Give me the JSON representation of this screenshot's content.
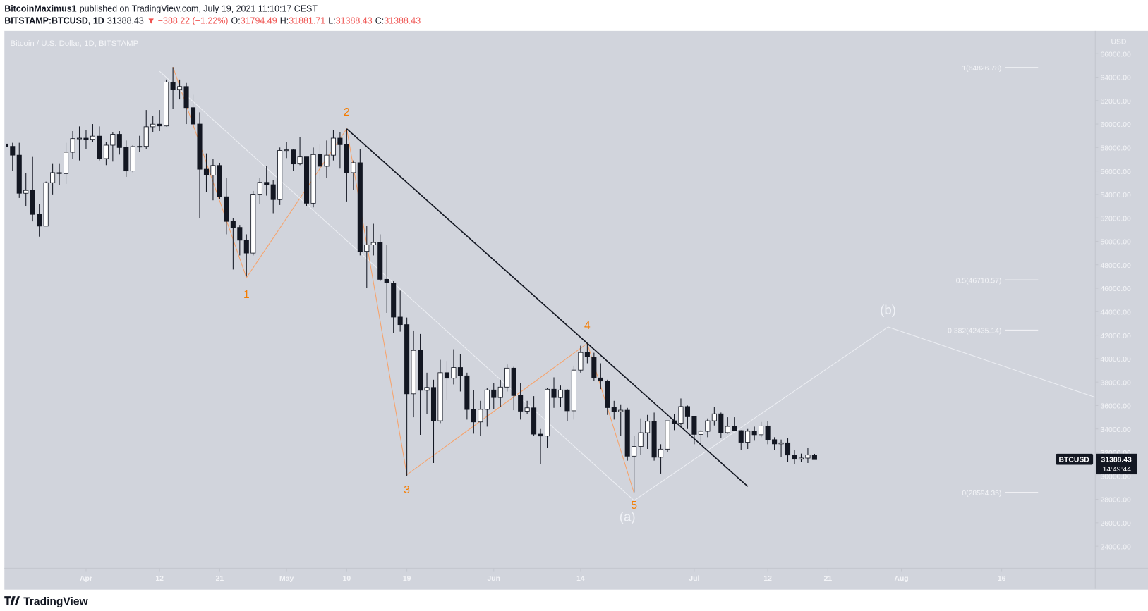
{
  "header": {
    "author": "BitcoinMaximus1",
    "published": "published on TradingView.com, July 19, 2021 11:10:17 CEST",
    "symbol": "BITSTAMP:BTCUSD, 1D",
    "last": "31388.43",
    "change": "▼ −388.22 (−1.22%)",
    "ohlc": [
      {
        "key": "O:",
        "value": "31794.49"
      },
      {
        "key": "H:",
        "value": "31881.71"
      },
      {
        "key": "L:",
        "value": "31388.43"
      },
      {
        "key": "C:",
        "value": "31388.43"
      }
    ]
  },
  "chart_data": {
    "type": "candlestick",
    "legend": "Bitcoin / U.S. Dollar, 1D, BITSTAMP",
    "currency": "USD",
    "symbol_tag": "BTCUSD",
    "last_label": "31388.43",
    "countdown": "14:49:44",
    "up_color": "#ffffff",
    "down_color": "#131722",
    "x": [
      "2021-03-20",
      "2021-03-21",
      "2021-03-22",
      "2021-03-23",
      "2021-03-24",
      "2021-03-25",
      "2021-03-26",
      "2021-03-27",
      "2021-03-28",
      "2021-03-29",
      "2021-03-30",
      "2021-03-31",
      "2021-04-01",
      "2021-04-02",
      "2021-04-03",
      "2021-04-04",
      "2021-04-05",
      "2021-04-06",
      "2021-04-07",
      "2021-04-08",
      "2021-04-09",
      "2021-04-10",
      "2021-04-11",
      "2021-04-12",
      "2021-04-13",
      "2021-04-14",
      "2021-04-15",
      "2021-04-16",
      "2021-04-17",
      "2021-04-18",
      "2021-04-19",
      "2021-04-20",
      "2021-04-21",
      "2021-04-22",
      "2021-04-23",
      "2021-04-24",
      "2021-04-25",
      "2021-04-26",
      "2021-04-27",
      "2021-04-28",
      "2021-04-29",
      "2021-04-30",
      "2021-05-01",
      "2021-05-02",
      "2021-05-03",
      "2021-05-04",
      "2021-05-05",
      "2021-05-06",
      "2021-05-07",
      "2021-05-08",
      "2021-05-09",
      "2021-05-10",
      "2021-05-11",
      "2021-05-12",
      "2021-05-13",
      "2021-05-14",
      "2021-05-15",
      "2021-05-16",
      "2021-05-17",
      "2021-05-18",
      "2021-05-19",
      "2021-05-20",
      "2021-05-21",
      "2021-05-22",
      "2021-05-23",
      "2021-05-24",
      "2021-05-25",
      "2021-05-26",
      "2021-05-27",
      "2021-05-28",
      "2021-05-29",
      "2021-05-30",
      "2021-05-31",
      "2021-06-01",
      "2021-06-02",
      "2021-06-03",
      "2021-06-04",
      "2021-06-05",
      "2021-06-06",
      "2021-06-07",
      "2021-06-08",
      "2021-06-09",
      "2021-06-10",
      "2021-06-11",
      "2021-06-12",
      "2021-06-13",
      "2021-06-14",
      "2021-06-15",
      "2021-06-16",
      "2021-06-17",
      "2021-06-18",
      "2021-06-19",
      "2021-06-20",
      "2021-06-21",
      "2021-06-22",
      "2021-06-23",
      "2021-06-24",
      "2021-06-25",
      "2021-06-26",
      "2021-06-27",
      "2021-06-28",
      "2021-06-29",
      "2021-06-30",
      "2021-07-01",
      "2021-07-02",
      "2021-07-03",
      "2021-07-04",
      "2021-07-05",
      "2021-07-06",
      "2021-07-07",
      "2021-07-08",
      "2021-07-09",
      "2021-07-10",
      "2021-07-11",
      "2021-07-12",
      "2021-07-13",
      "2021-07-14",
      "2021-07-15",
      "2021-07-16",
      "2021-07-17",
      "2021-07-18",
      "2021-07-19"
    ],
    "open": [
      58300,
      58100,
      57350,
      54100,
      54340,
      52300,
      51300,
      55000,
      55860,
      55780,
      57600,
      58760,
      58800,
      58700,
      58970,
      57060,
      58200,
      59130,
      58000,
      56000,
      58080,
      58100,
      59770,
      59990,
      59840,
      63580,
      62960,
      63200,
      61400,
      60000,
      56150,
      55650,
      56470,
      53800,
      51700,
      51190,
      50100,
      49000,
      54020,
      55030,
      54830,
      53560,
      57750,
      57800,
      56600,
      57200,
      53250,
      57400,
      56400,
      57350,
      58800,
      58240,
      55860,
      56700,
      49150,
      49700,
      49900,
      46760,
      46450,
      43540,
      42900,
      37000,
      40700,
      37300,
      37540,
      34700,
      38800,
      38330,
      39240,
      38530,
      35660,
      34600,
      35670,
      37330,
      36680,
      37570,
      39190,
      36850,
      35520,
      35800,
      33560,
      33400,
      37390,
      36680,
      37330,
      35550,
      39020,
      40520,
      40140,
      38350,
      38090,
      35820,
      35480,
      35600,
      31680,
      32510,
      33680,
      34660,
      31590,
      32280,
      34700,
      34490,
      35910,
      35040,
      33540,
      33800,
      34700,
      35290,
      33690,
      34220,
      33860,
      32870,
      33810,
      33510,
      34260,
      33090,
      32730,
      32820,
      31780,
      31420,
      31520,
      31794.49
    ],
    "high": [
      59900,
      58400,
      58400,
      55800,
      57200,
      53200,
      55100,
      56600,
      56600,
      58400,
      59400,
      59800,
      59500,
      60000,
      59800,
      58500,
      59300,
      59400,
      58600,
      58200,
      59000,
      61200,
      60700,
      61200,
      63800,
      64850,
      63800,
      63500,
      62500,
      61000,
      57500,
      57000,
      56700,
      55400,
      52000,
      51400,
      50600,
      54300,
      55400,
      56400,
      55200,
      58000,
      58500,
      57900,
      58900,
      57200,
      58000,
      58300,
      58600,
      59500,
      59300,
      59600,
      56900,
      57900,
      51300,
      51500,
      50600,
      49700,
      46600,
      45800,
      43500,
      42400,
      42100,
      38800,
      38200,
      39900,
      39800,
      40800,
      40400,
      38800,
      37300,
      36400,
      37500,
      37900,
      38200,
      39500,
      39300,
      37900,
      36400,
      36800,
      34000,
      37500,
      38400,
      37700,
      37400,
      39400,
      41100,
      41300,
      40500,
      39600,
      38200,
      36400,
      36100,
      35800,
      33400,
      34900,
      35200,
      35400,
      32700,
      34700,
      35300,
      36600,
      36000,
      35100,
      33900,
      34900,
      35900,
      35400,
      35000,
      35000,
      33900,
      34000,
      34200,
      34600,
      34700,
      33300,
      33100,
      33200,
      32200,
      31900,
      32400,
      31881.71
    ],
    "low": [
      57900,
      56000,
      53700,
      53000,
      51700,
      50400,
      51300,
      54000,
      54800,
      54900,
      57000,
      56900,
      57900,
      58500,
      56900,
      56500,
      56800,
      57400,
      55500,
      55900,
      57600,
      57900,
      59300,
      59400,
      59800,
      61300,
      62100,
      60000,
      59600,
      52000,
      54200,
      53500,
      53600,
      50600,
      47600,
      48800,
      47000,
      48800,
      53200,
      53900,
      52400,
      53100,
      57100,
      56000,
      56500,
      53000,
      52900,
      55300,
      55400,
      56900,
      56200,
      53400,
      54400,
      48800,
      46000,
      48800,
      46600,
      43900,
      42200,
      42300,
      30000,
      35000,
      33500,
      35300,
      31100,
      34500,
      36500,
      37800,
      37200,
      34800,
      33600,
      33400,
      34200,
      35700,
      35900,
      37200,
      35600,
      34800,
      35300,
      33400,
      31000,
      32400,
      35800,
      35900,
      34700,
      34800,
      38800,
      39600,
      38100,
      37400,
      35200,
      34800,
      33400,
      31300,
      28600,
      31800,
      32300,
      31300,
      30200,
      32000,
      33900,
      34300,
      34000,
      32700,
      32700,
      33300,
      34300,
      33200,
      33600,
      33800,
      32200,
      32300,
      33000,
      33300,
      32700,
      32200,
      31600,
      31200,
      31000,
      31200,
      31100,
      31388.43
    ],
    "close": [
      58100,
      57350,
      54100,
      54340,
      52300,
      51300,
      55000,
      55860,
      55780,
      57600,
      58760,
      58800,
      58700,
      58970,
      57060,
      58200,
      59130,
      58000,
      56000,
      58080,
      58100,
      59770,
      59990,
      59840,
      63580,
      62960,
      63200,
      61400,
      60000,
      56150,
      55650,
      56470,
      53800,
      51700,
      51190,
      50100,
      49000,
      54020,
      55030,
      54830,
      53560,
      57750,
      57800,
      56600,
      57200,
      53250,
      57400,
      56400,
      57350,
      58800,
      58240,
      55860,
      56700,
      49150,
      49700,
      49900,
      46760,
      46450,
      43540,
      42900,
      37000,
      40700,
      37300,
      37540,
      34700,
      38800,
      38330,
      39240,
      38530,
      35660,
      34600,
      35670,
      37330,
      36680,
      37570,
      39190,
      36850,
      35520,
      35800,
      33560,
      33400,
      37390,
      36680,
      37330,
      35550,
      39020,
      40520,
      40140,
      38350,
      38090,
      35820,
      35480,
      35600,
      31680,
      32510,
      33680,
      34660,
      31590,
      32280,
      34700,
      34490,
      35910,
      35040,
      33540,
      33800,
      34700,
      35290,
      33690,
      34220,
      33860,
      32870,
      33810,
      33510,
      34260,
      33090,
      32730,
      32820,
      31780,
      31420,
      31520,
      31780,
      31388.43
    ],
    "xlim": [
      "2021-03-20",
      "2021-08-30"
    ],
    "xticks": [
      {
        "value": "2021-04-01",
        "label": "Apr"
      },
      {
        "value": "2021-04-12",
        "label": "12"
      },
      {
        "value": "2021-04-21",
        "label": "21"
      },
      {
        "value": "2021-05-01",
        "label": "May"
      },
      {
        "value": "2021-05-10",
        "label": "10"
      },
      {
        "value": "2021-05-19",
        "label": "19"
      },
      {
        "value": "2021-06-01",
        "label": "Jun"
      },
      {
        "value": "2021-06-14",
        "label": "14"
      },
      {
        "value": "2021-07-01",
        "label": "Jul"
      },
      {
        "value": "2021-07-12",
        "label": "12"
      },
      {
        "value": "2021-07-21",
        "label": "21"
      },
      {
        "value": "2021-08-01",
        "label": "Aug"
      },
      {
        "value": "2021-08-16",
        "label": "16"
      }
    ],
    "ylim": [
      22120,
      67880
    ],
    "yticks": [
      {
        "value": 24000,
        "label": "24000.00"
      },
      {
        "value": 26000,
        "label": "26000.00"
      },
      {
        "value": 28000,
        "label": "28000.00"
      },
      {
        "value": 30000,
        "label": "30000.00"
      },
      {
        "value": 32000,
        "label": "32000.00"
      },
      {
        "value": 34000,
        "label": "34000.00"
      },
      {
        "value": 36000,
        "label": "36000.00"
      },
      {
        "value": 38000,
        "label": "38000.00"
      },
      {
        "value": 40000,
        "label": "40000.00"
      },
      {
        "value": 42000,
        "label": "42000.00"
      },
      {
        "value": 44000,
        "label": "44000.00"
      },
      {
        "value": 46000,
        "label": "46000.00"
      },
      {
        "value": 48000,
        "label": "48000.00"
      },
      {
        "value": 50000,
        "label": "50000.00"
      },
      {
        "value": 52000,
        "label": "52000.00"
      },
      {
        "value": 54000,
        "label": "54000.00"
      },
      {
        "value": 56000,
        "label": "56000.00"
      },
      {
        "value": 58000,
        "label": "58000.00"
      },
      {
        "value": 60000,
        "label": "60000.00"
      },
      {
        "value": 62000,
        "label": "62000.00"
      },
      {
        "value": 64000,
        "label": "64000.00"
      },
      {
        "value": 66000,
        "label": "66000.00"
      }
    ],
    "drawings": [
      {
        "name": "wave",
        "color": "#f7a26a",
        "points": [
          {
            "x": "2021-04-14",
            "y": 64870
          },
          {
            "x": "2021-04-25",
            "y": 46900
          },
          {
            "x": "2021-05-10",
            "y": 59600
          },
          {
            "x": "2021-05-19",
            "y": 30100
          },
          {
            "x": "2021-06-15",
            "y": 41300
          },
          {
            "x": "2021-06-22",
            "y": 28530
          }
        ]
      },
      {
        "name": "channel",
        "color": "#eceef3",
        "points": [
          {
            "x": "2021-04-12",
            "y": 64500
          },
          {
            "x": "2021-06-22",
            "y": 27900
          },
          {
            "x": "2021-07-30",
            "y": 42700
          },
          {
            "x": "2021-08-30",
            "y": 36700
          }
        ]
      },
      {
        "name": "trendline",
        "color": "#131722",
        "points": [
          {
            "x": "2021-05-10",
            "y": 59600
          },
          {
            "x": "2021-07-09",
            "y": 29100
          }
        ]
      }
    ],
    "labels": [
      {
        "text": "1",
        "x": "2021-04-25",
        "y": 45470,
        "color": "#f57c00"
      },
      {
        "text": "2",
        "x": "2021-05-10",
        "y": 61040,
        "color": "#f57c00"
      },
      {
        "text": "3",
        "x": "2021-05-19",
        "y": 28840,
        "color": "#f57c00"
      },
      {
        "text": "4",
        "x": "2021-06-15",
        "y": 42840,
        "color": "#f57c00"
      },
      {
        "text": "5",
        "x": "2021-06-22",
        "y": 27520,
        "color": "#f57c00"
      },
      {
        "text": "(a)",
        "x": "2021-06-21",
        "y": 26450,
        "color": "#f0f2f7"
      },
      {
        "text": "(b)",
        "x": "2021-07-30",
        "y": 44100,
        "color": "#f0f2f7"
      }
    ],
    "fib_levels": [
      {
        "label": "1(64826.78)",
        "value": 64826.78
      },
      {
        "label": "0.5(46710.57)",
        "value": 46710.57
      },
      {
        "label": "0.382(42435.14)",
        "value": 42435.14
      },
      {
        "label": "0(28594.35)",
        "value": 28594.35
      }
    ],
    "brand": "TradingView"
  }
}
